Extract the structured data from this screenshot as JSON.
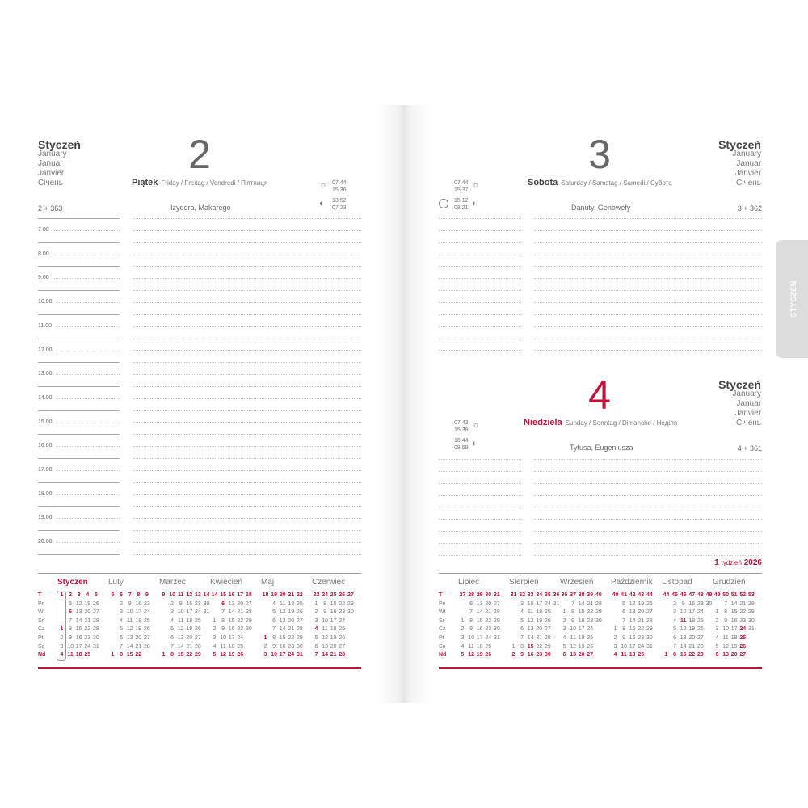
{
  "left_page": {
    "month": {
      "title": "Styczeń",
      "langs": [
        "January",
        "Januar",
        "Janvier",
        "Січень"
      ]
    },
    "day_number": "2",
    "day_name": "Piątek",
    "day_name_langs": "Friday / Freitag / Vendredi / П'ятниця",
    "day_count": "2 + 363",
    "name_days": "Izydora, Makarego",
    "sun": {
      "rise": "07:44",
      "set": "15:36"
    },
    "moon": {
      "rise": "13:52",
      "set": "07:23"
    },
    "hours": [
      "7.00",
      "8.00",
      "9.00",
      "10.00",
      "11.00",
      "12.00",
      "13.00",
      "14.00",
      "15.00",
      "16.00",
      "17.00",
      "18.00",
      "19.00",
      "20.00"
    ]
  },
  "right_page": {
    "day3": {
      "month": {
        "title": "Styczeń",
        "langs": [
          "January",
          "Januar",
          "Janvier",
          "Січень"
        ]
      },
      "day_number": "3",
      "day_name": "Sobota",
      "day_name_langs": "Saturday / Samstag / Samedi / Субота",
      "day_count": "3 + 362",
      "name_days": "Danuty, Genowefy",
      "sun": {
        "rise": "07:44",
        "set": "15:37"
      },
      "moon": {
        "rise": "15:12",
        "set": "08:21"
      },
      "moon_phase": "full-moon"
    },
    "day4": {
      "month": {
        "title": "Styczeń",
        "langs": [
          "January",
          "Januar",
          "Janvier",
          "Січень"
        ]
      },
      "day_number": "4",
      "day_name": "Niedziela",
      "day_name_langs": "Sunday / Sonntag / Dimanche / Неділя",
      "day_count": "4 + 361",
      "name_days": "Tytusa, Eugeniusza",
      "sun": {
        "rise": "07:43",
        "set": "15:38"
      },
      "moon": {
        "rise": "16:44",
        "set": "08:59"
      }
    },
    "week_label": {
      "num": "1",
      "word": "tydzień",
      "year": "2026"
    },
    "side_tab": "STYCZEŃ"
  },
  "colors": {
    "accent": "#c0143c",
    "text": "#555555",
    "tab": "#dcdcdc"
  },
  "icons": {
    "sun": "sun-icon",
    "moon": "half-moon-icon",
    "full_moon": "full-moon-icon"
  },
  "calendar": {
    "row_labels": [
      "T",
      "Pn",
      "Wt",
      "Śr",
      "Cz",
      "Pt",
      "So",
      "Nd"
    ],
    "left": [
      {
        "name": "Styczeń",
        "current": true,
        "weeks": [
          "1",
          "2",
          "3",
          "4",
          "5"
        ],
        "red": [
          "1",
          "6"
        ],
        "rows": [
          [
            "",
            "5",
            "12",
            "19",
            "26"
          ],
          [
            "",
            "6",
            "13",
            "20",
            "27"
          ],
          [
            "",
            "7",
            "14",
            "21",
            "28"
          ],
          [
            "1",
            "8",
            "15",
            "22",
            "29"
          ],
          [
            "2",
            "9",
            "16",
            "23",
            "30"
          ],
          [
            "3",
            "10",
            "17",
            "24",
            "31"
          ],
          [
            "4",
            "11",
            "18",
            "25",
            ""
          ]
        ]
      },
      {
        "name": "Luty",
        "weeks": [
          "5",
          "6",
          "7",
          "8",
          "9"
        ],
        "red": [],
        "rows": [
          [
            "",
            "2",
            "9",
            "16",
            "23"
          ],
          [
            "",
            "3",
            "10",
            "17",
            "24"
          ],
          [
            "",
            "4",
            "11",
            "18",
            "25"
          ],
          [
            "",
            "5",
            "12",
            "19",
            "26"
          ],
          [
            "",
            "6",
            "13",
            "20",
            "27"
          ],
          [
            "",
            "7",
            "14",
            "21",
            "28"
          ],
          [
            "1",
            "8",
            "15",
            "22",
            ""
          ]
        ]
      },
      {
        "name": "Marzec",
        "weeks": [
          "9",
          "10",
          "11",
          "12",
          "13",
          "14"
        ],
        "red": [],
        "rows": [
          [
            "",
            "2",
            "9",
            "16",
            "23",
            "30"
          ],
          [
            "",
            "3",
            "10",
            "17",
            "24",
            "31"
          ],
          [
            "",
            "4",
            "11",
            "18",
            "25",
            ""
          ],
          [
            "",
            "5",
            "12",
            "19",
            "26",
            ""
          ],
          [
            "",
            "6",
            "13",
            "20",
            "27",
            ""
          ],
          [
            "",
            "7",
            "14",
            "21",
            "28",
            ""
          ],
          [
            "1",
            "8",
            "15",
            "22",
            "29",
            ""
          ]
        ]
      },
      {
        "name": "Kwiecień",
        "weeks": [
          "14",
          "15",
          "16",
          "17",
          "18"
        ],
        "red": [
          "6"
        ],
        "rows": [
          [
            "",
            "6",
            "13",
            "20",
            "27"
          ],
          [
            "",
            "7",
            "14",
            "21",
            "28"
          ],
          [
            "1",
            "8",
            "15",
            "22",
            "29"
          ],
          [
            "2",
            "9",
            "16",
            "23",
            "30"
          ],
          [
            "3",
            "10",
            "17",
            "24",
            ""
          ],
          [
            "4",
            "11",
            "18",
            "25",
            ""
          ],
          [
            "5",
            "12",
            "19",
            "26",
            ""
          ]
        ]
      },
      {
        "name": "Maj",
        "weeks": [
          "18",
          "19",
          "20",
          "21",
          "22"
        ],
        "red": [
          "1"
        ],
        "rows": [
          [
            "",
            "4",
            "11",
            "18",
            "25"
          ],
          [
            "",
            "5",
            "12",
            "19",
            "26"
          ],
          [
            "",
            "6",
            "13",
            "20",
            "27"
          ],
          [
            "",
            "7",
            "14",
            "21",
            "28"
          ],
          [
            "1",
            "8",
            "15",
            "22",
            "29"
          ],
          [
            "2",
            "9",
            "16",
            "23",
            "30"
          ],
          [
            "3",
            "10",
            "17",
            "24",
            "31"
          ]
        ]
      },
      {
        "name": "Czerwiec",
        "weeks": [
          "23",
          "24",
          "25",
          "26",
          "27"
        ],
        "red": [
          "4"
        ],
        "rows": [
          [
            "1",
            "8",
            "15",
            "22",
            "29"
          ],
          [
            "2",
            "9",
            "16",
            "23",
            "30"
          ],
          [
            "3",
            "10",
            "17",
            "24",
            ""
          ],
          [
            "4",
            "11",
            "18",
            "25",
            ""
          ],
          [
            "5",
            "12",
            "19",
            "26",
            ""
          ],
          [
            "6",
            "13",
            "20",
            "27",
            ""
          ],
          [
            "7",
            "14",
            "21",
            "28",
            ""
          ]
        ]
      }
    ],
    "right": [
      {
        "name": "Lipiec",
        "weeks": [
          "27",
          "28",
          "29",
          "30",
          "31"
        ],
        "red": [],
        "rows": [
          [
            "",
            "6",
            "13",
            "20",
            "27"
          ],
          [
            "",
            "7",
            "14",
            "21",
            "28"
          ],
          [
            "1",
            "8",
            "15",
            "22",
            "29"
          ],
          [
            "2",
            "9",
            "16",
            "23",
            "30"
          ],
          [
            "3",
            "10",
            "17",
            "24",
            "31"
          ],
          [
            "4",
            "11",
            "18",
            "25",
            ""
          ],
          [
            "5",
            "12",
            "19",
            "26",
            ""
          ]
        ]
      },
      {
        "name": "Sierpień",
        "weeks": [
          "31",
          "32",
          "33",
          "34",
          "35",
          "36"
        ],
        "red": [
          "15"
        ],
        "rows": [
          [
            "",
            "3",
            "10",
            "17",
            "24",
            "31"
          ],
          [
            "",
            "4",
            "11",
            "18",
            "25",
            ""
          ],
          [
            "",
            "5",
            "12",
            "19",
            "26",
            ""
          ],
          [
            "",
            "6",
            "13",
            "20",
            "27",
            ""
          ],
          [
            "",
            "7",
            "14",
            "21",
            "28",
            ""
          ],
          [
            "1",
            "8",
            "15",
            "22",
            "29",
            ""
          ],
          [
            "2",
            "9",
            "16",
            "23",
            "30",
            ""
          ]
        ]
      },
      {
        "name": "Wrzesień",
        "weeks": [
          "36",
          "37",
          "38",
          "39",
          "40"
        ],
        "red": [],
        "rows": [
          [
            "",
            "7",
            "14",
            "21",
            "28"
          ],
          [
            "1",
            "8",
            "15",
            "22",
            "29"
          ],
          [
            "2",
            "9",
            "16",
            "23",
            "30"
          ],
          [
            "3",
            "10",
            "17",
            "24",
            ""
          ],
          [
            "4",
            "11",
            "18",
            "25",
            ""
          ],
          [
            "5",
            "12",
            "19",
            "26",
            ""
          ],
          [
            "6",
            "13",
            "20",
            "27",
            ""
          ]
        ]
      },
      {
        "name": "Październik",
        "weeks": [
          "40",
          "41",
          "42",
          "43",
          "44"
        ],
        "red": [],
        "rows": [
          [
            "",
            "5",
            "12",
            "19",
            "26"
          ],
          [
            "",
            "6",
            "13",
            "20",
            "27"
          ],
          [
            "",
            "7",
            "14",
            "21",
            "28"
          ],
          [
            "1",
            "8",
            "15",
            "22",
            "29"
          ],
          [
            "2",
            "9",
            "16",
            "23",
            "30"
          ],
          [
            "3",
            "10",
            "17",
            "24",
            "31"
          ],
          [
            "4",
            "11",
            "18",
            "25",
            ""
          ]
        ]
      },
      {
        "name": "Listopad",
        "weeks": [
          "44",
          "45",
          "46",
          "47",
          "48",
          "49"
        ],
        "red": [
          "11"
        ],
        "rows": [
          [
            "",
            "2",
            "9",
            "16",
            "23",
            "30"
          ],
          [
            "",
            "3",
            "10",
            "17",
            "24",
            ""
          ],
          [
            "",
            "4",
            "11",
            "18",
            "25",
            ""
          ],
          [
            "",
            "5",
            "12",
            "19",
            "26",
            ""
          ],
          [
            "",
            "6",
            "13",
            "20",
            "27",
            ""
          ],
          [
            "",
            "7",
            "14",
            "21",
            "28",
            ""
          ],
          [
            "1",
            "8",
            "15",
            "22",
            "29",
            ""
          ]
        ]
      },
      {
        "name": "Grudzień",
        "weeks": [
          "49",
          "50",
          "51",
          "52",
          "53"
        ],
        "red": [
          "24",
          "25",
          "26"
        ],
        "rows": [
          [
            "",
            "7",
            "14",
            "21",
            "28"
          ],
          [
            "1",
            "8",
            "15",
            "22",
            "29"
          ],
          [
            "2",
            "9",
            "16",
            "23",
            "30"
          ],
          [
            "3",
            "10",
            "17",
            "24",
            "31"
          ],
          [
            "4",
            "11",
            "18",
            "25",
            ""
          ],
          [
            "5",
            "12",
            "19",
            "26",
            ""
          ],
          [
            "6",
            "13",
            "20",
            "27",
            ""
          ]
        ]
      }
    ]
  }
}
